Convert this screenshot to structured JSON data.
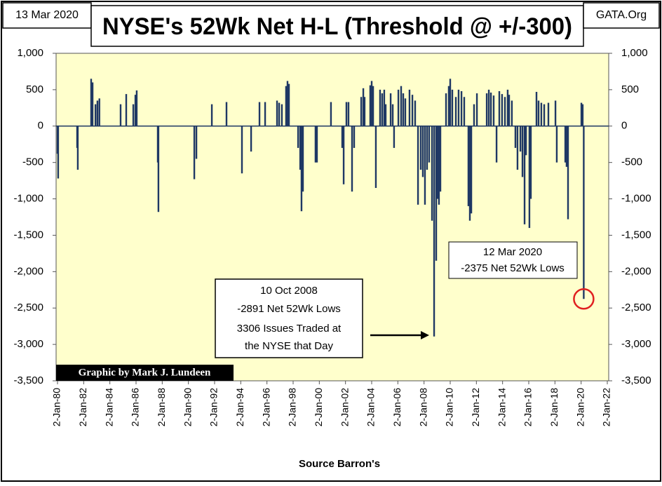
{
  "chart_data": {
    "type": "bar",
    "title": "NYSE's 52Wk Net H-L (Threshold @ +/-300)",
    "date_label": "13 Mar 2020",
    "source_site": "GATA.Org",
    "credit": "Graphic by Mark J. Lundeen",
    "x_label": "Source Barron's",
    "color": "#1f3864",
    "grid": false,
    "annotations": [
      {
        "lines": [
          "10 Oct 2008",
          "-2891 Net 52Wk Lows",
          "3306 Issues Traded at",
          "the NYSE that Day"
        ]
      },
      {
        "lines": [
          "12 Mar 2020",
          "-2375 Net 52Wk Lows"
        ]
      }
    ],
    "xlim": [
      1980,
      2022
    ],
    "xticks": [
      {
        "value": 1980,
        "label": "2-Jan-80"
      },
      {
        "value": 1982,
        "label": "2-Jan-82"
      },
      {
        "value": 1984,
        "label": "2-Jan-84"
      },
      {
        "value": 1986,
        "label": "2-Jan-86"
      },
      {
        "value": 1988,
        "label": "2-Jan-88"
      },
      {
        "value": 1990,
        "label": "2-Jan-90"
      },
      {
        "value": 1992,
        "label": "2-Jan-92"
      },
      {
        "value": 1994,
        "label": "2-Jan-94"
      },
      {
        "value": 1996,
        "label": "2-Jan-96"
      },
      {
        "value": 1998,
        "label": "2-Jan-98"
      },
      {
        "value": 2000,
        "label": "2-Jan-00"
      },
      {
        "value": 2002,
        "label": "2-Jan-02"
      },
      {
        "value": 2004,
        "label": "2-Jan-04"
      },
      {
        "value": 2006,
        "label": "2-Jan-06"
      },
      {
        "value": 2008,
        "label": "2-Jan-08"
      },
      {
        "value": 2010,
        "label": "2-Jan-10"
      },
      {
        "value": 2012,
        "label": "2-Jan-12"
      },
      {
        "value": 2014,
        "label": "2-Jan-14"
      },
      {
        "value": 2016,
        "label": "2-Jan-16"
      },
      {
        "value": 2018,
        "label": "2-Jan-18"
      },
      {
        "value": 2020,
        "label": "2-Jan-20"
      },
      {
        "value": 2022,
        "label": "2-Jan-22"
      }
    ],
    "ylim": [
      -3500,
      1000
    ],
    "yticks": [
      {
        "value": 1000,
        "label": "1,000"
      },
      500,
      0,
      -500,
      {
        "value": -1000,
        "label": "-1,000"
      },
      {
        "value": -1500,
        "label": "-1,500"
      },
      {
        "value": -2000,
        "label": "-2,000"
      },
      {
        "value": -2500,
        "label": "-2,500"
      },
      {
        "value": -3000,
        "label": "-3,000"
      },
      {
        "value": -3500,
        "label": "-3,500"
      }
    ],
    "x": [
      1980.0,
      1980.05,
      1981.5,
      1981.55,
      1982.57,
      1982.68,
      1982.9,
      1983.05,
      1983.2,
      1984.82,
      1985.25,
      1985.79,
      1985.95,
      1986.05,
      1987.66,
      1987.71,
      1990.45,
      1990.61,
      1991.79,
      1992.91,
      1994.09,
      1994.79,
      1995.43,
      1995.86,
      1996.77,
      1996.93,
      1997.14,
      1997.46,
      1997.57,
      1997.68,
      1998.38,
      1998.54,
      1998.64,
      1998.75,
      1999.71,
      1999.82,
      2000.89,
      2001.75,
      2001.86,
      2002.07,
      2002.23,
      2002.5,
      2002.66,
      2003.2,
      2003.36,
      2003.46,
      2003.89,
      2004.0,
      2004.11,
      2004.32,
      2004.64,
      2004.8,
      2004.96,
      2005.07,
      2005.45,
      2005.61,
      2005.71,
      2006.04,
      2006.25,
      2006.41,
      2006.57,
      2006.89,
      2007.11,
      2007.32,
      2007.54,
      2007.75,
      2007.91,
      2008.07,
      2008.23,
      2008.39,
      2008.61,
      2008.77,
      2008.93,
      2009.04,
      2009.14,
      2009.25,
      2009.68,
      2009.89,
      2010.0,
      2010.16,
      2010.43,
      2010.64,
      2010.86,
      2011.07,
      2011.39,
      2011.5,
      2011.61,
      2011.82,
      2012.04,
      2012.79,
      2012.95,
      2013.11,
      2013.32,
      2013.54,
      2013.75,
      2013.96,
      2014.18,
      2014.39,
      2014.5,
      2014.71,
      2014.98,
      2015.14,
      2015.36,
      2015.52,
      2015.68,
      2015.79,
      2016.05,
      2016.16,
      2016.59,
      2016.75,
      2016.96,
      2017.18,
      2017.5,
      2018.04,
      2018.14,
      2018.79,
      2018.89,
      2019.0,
      2020.02,
      2020.12,
      2020.2
    ],
    "values": [
      -380,
      -720,
      -300,
      -600,
      650,
      600,
      300,
      350,
      380,
      300,
      440,
      300,
      430,
      490,
      -500,
      -1180,
      -730,
      -450,
      300,
      330,
      -650,
      -350,
      330,
      330,
      350,
      320,
      300,
      550,
      620,
      580,
      -300,
      -600,
      -1170,
      -900,
      -500,
      -500,
      330,
      -300,
      -800,
      330,
      330,
      -900,
      -300,
      400,
      520,
      400,
      560,
      620,
      550,
      -850,
      500,
      450,
      500,
      300,
      450,
      300,
      -300,
      500,
      550,
      450,
      380,
      500,
      430,
      350,
      -1080,
      -600,
      -700,
      -1080,
      -600,
      -500,
      -1300,
      -2891,
      -1850,
      -1000,
      -1080,
      -900,
      450,
      550,
      650,
      500,
      400,
      500,
      480,
      400,
      -1100,
      -1300,
      -1200,
      300,
      450,
      450,
      500,
      460,
      420,
      -500,
      480,
      440,
      400,
      500,
      430,
      350,
      -300,
      -600,
      -350,
      -700,
      -1350,
      -400,
      -1400,
      -1000,
      470,
      350,
      320,
      300,
      320,
      350,
      -500,
      -500,
      -560,
      -1280,
      320,
      300,
      -2375
    ]
  }
}
